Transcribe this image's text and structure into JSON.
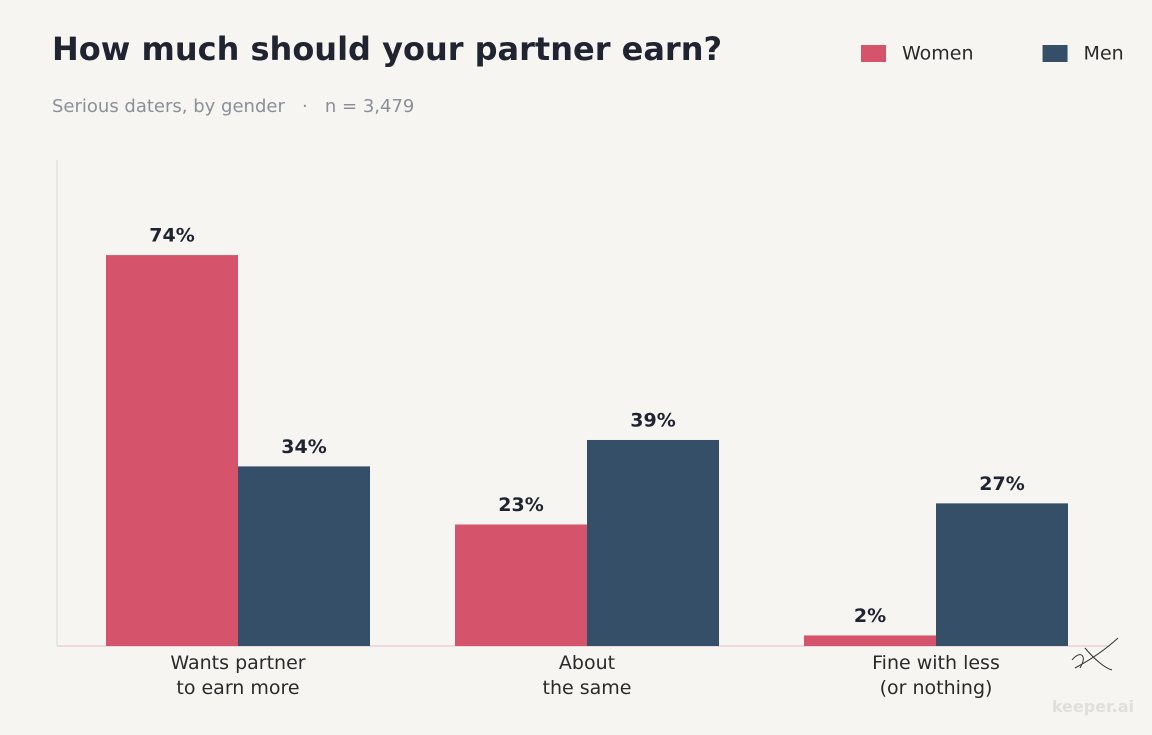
{
  "chart_data": {
    "type": "bar",
    "title": "How much should your partner earn?",
    "subtitle": "Serious daters, by gender   ·   n = 3,479",
    "categories": [
      "Wants partner\nto earn more",
      "About\nthe same",
      "Fine with less\n(or nothing)"
    ],
    "series": [
      {
        "name": "Women",
        "color": "#d6546b",
        "values": [
          74,
          23,
          2
        ],
        "value_labels": [
          "74%",
          "23%",
          "2%"
        ]
      },
      {
        "name": "Men",
        "color": "#364f69",
        "values": [
          34,
          39,
          27
        ],
        "value_labels": [
          "34%",
          "39%",
          "27%"
        ]
      }
    ],
    "ylim": [
      0,
      92
    ],
    "legend": "top-right",
    "watermark": "keeper.ai"
  }
}
